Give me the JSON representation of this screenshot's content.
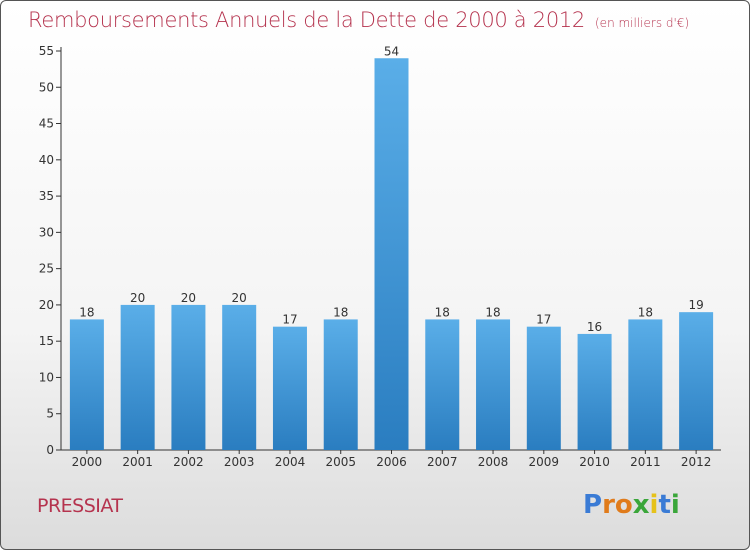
{
  "header": {
    "title": "Remboursements Annuels de la Dette de 2000 à 2012",
    "subtitle": "(en milliers d'€)"
  },
  "footer": {
    "city": "PRESSIAT",
    "logo": "Proxiti"
  },
  "colors": {
    "accent": "#b5334e",
    "bar_top": "#5aaee8",
    "bar_bottom": "#2a7dc0",
    "logo_letters": [
      "#3a7bd5",
      "#e07b1b",
      "#e07b1b",
      "#3aa63a",
      "#e6c21a",
      "#3a7bd5",
      "#3aa63a"
    ]
  },
  "chart_data": {
    "type": "bar",
    "title": "Remboursements Annuels de la Dette de 2000 à 2012",
    "subtitle": "(en milliers d'€)",
    "categories": [
      "2000",
      "2001",
      "2002",
      "2003",
      "2004",
      "2005",
      "2006",
      "2007",
      "2008",
      "2009",
      "2010",
      "2011",
      "2012"
    ],
    "values": [
      18,
      20,
      20,
      20,
      17,
      18,
      54,
      18,
      18,
      17,
      16,
      18,
      19
    ],
    "ylim": [
      0,
      55
    ],
    "yticks": [
      0,
      5,
      10,
      15,
      20,
      25,
      30,
      35,
      40,
      45,
      50,
      55
    ],
    "grid": false,
    "legend": "none"
  }
}
